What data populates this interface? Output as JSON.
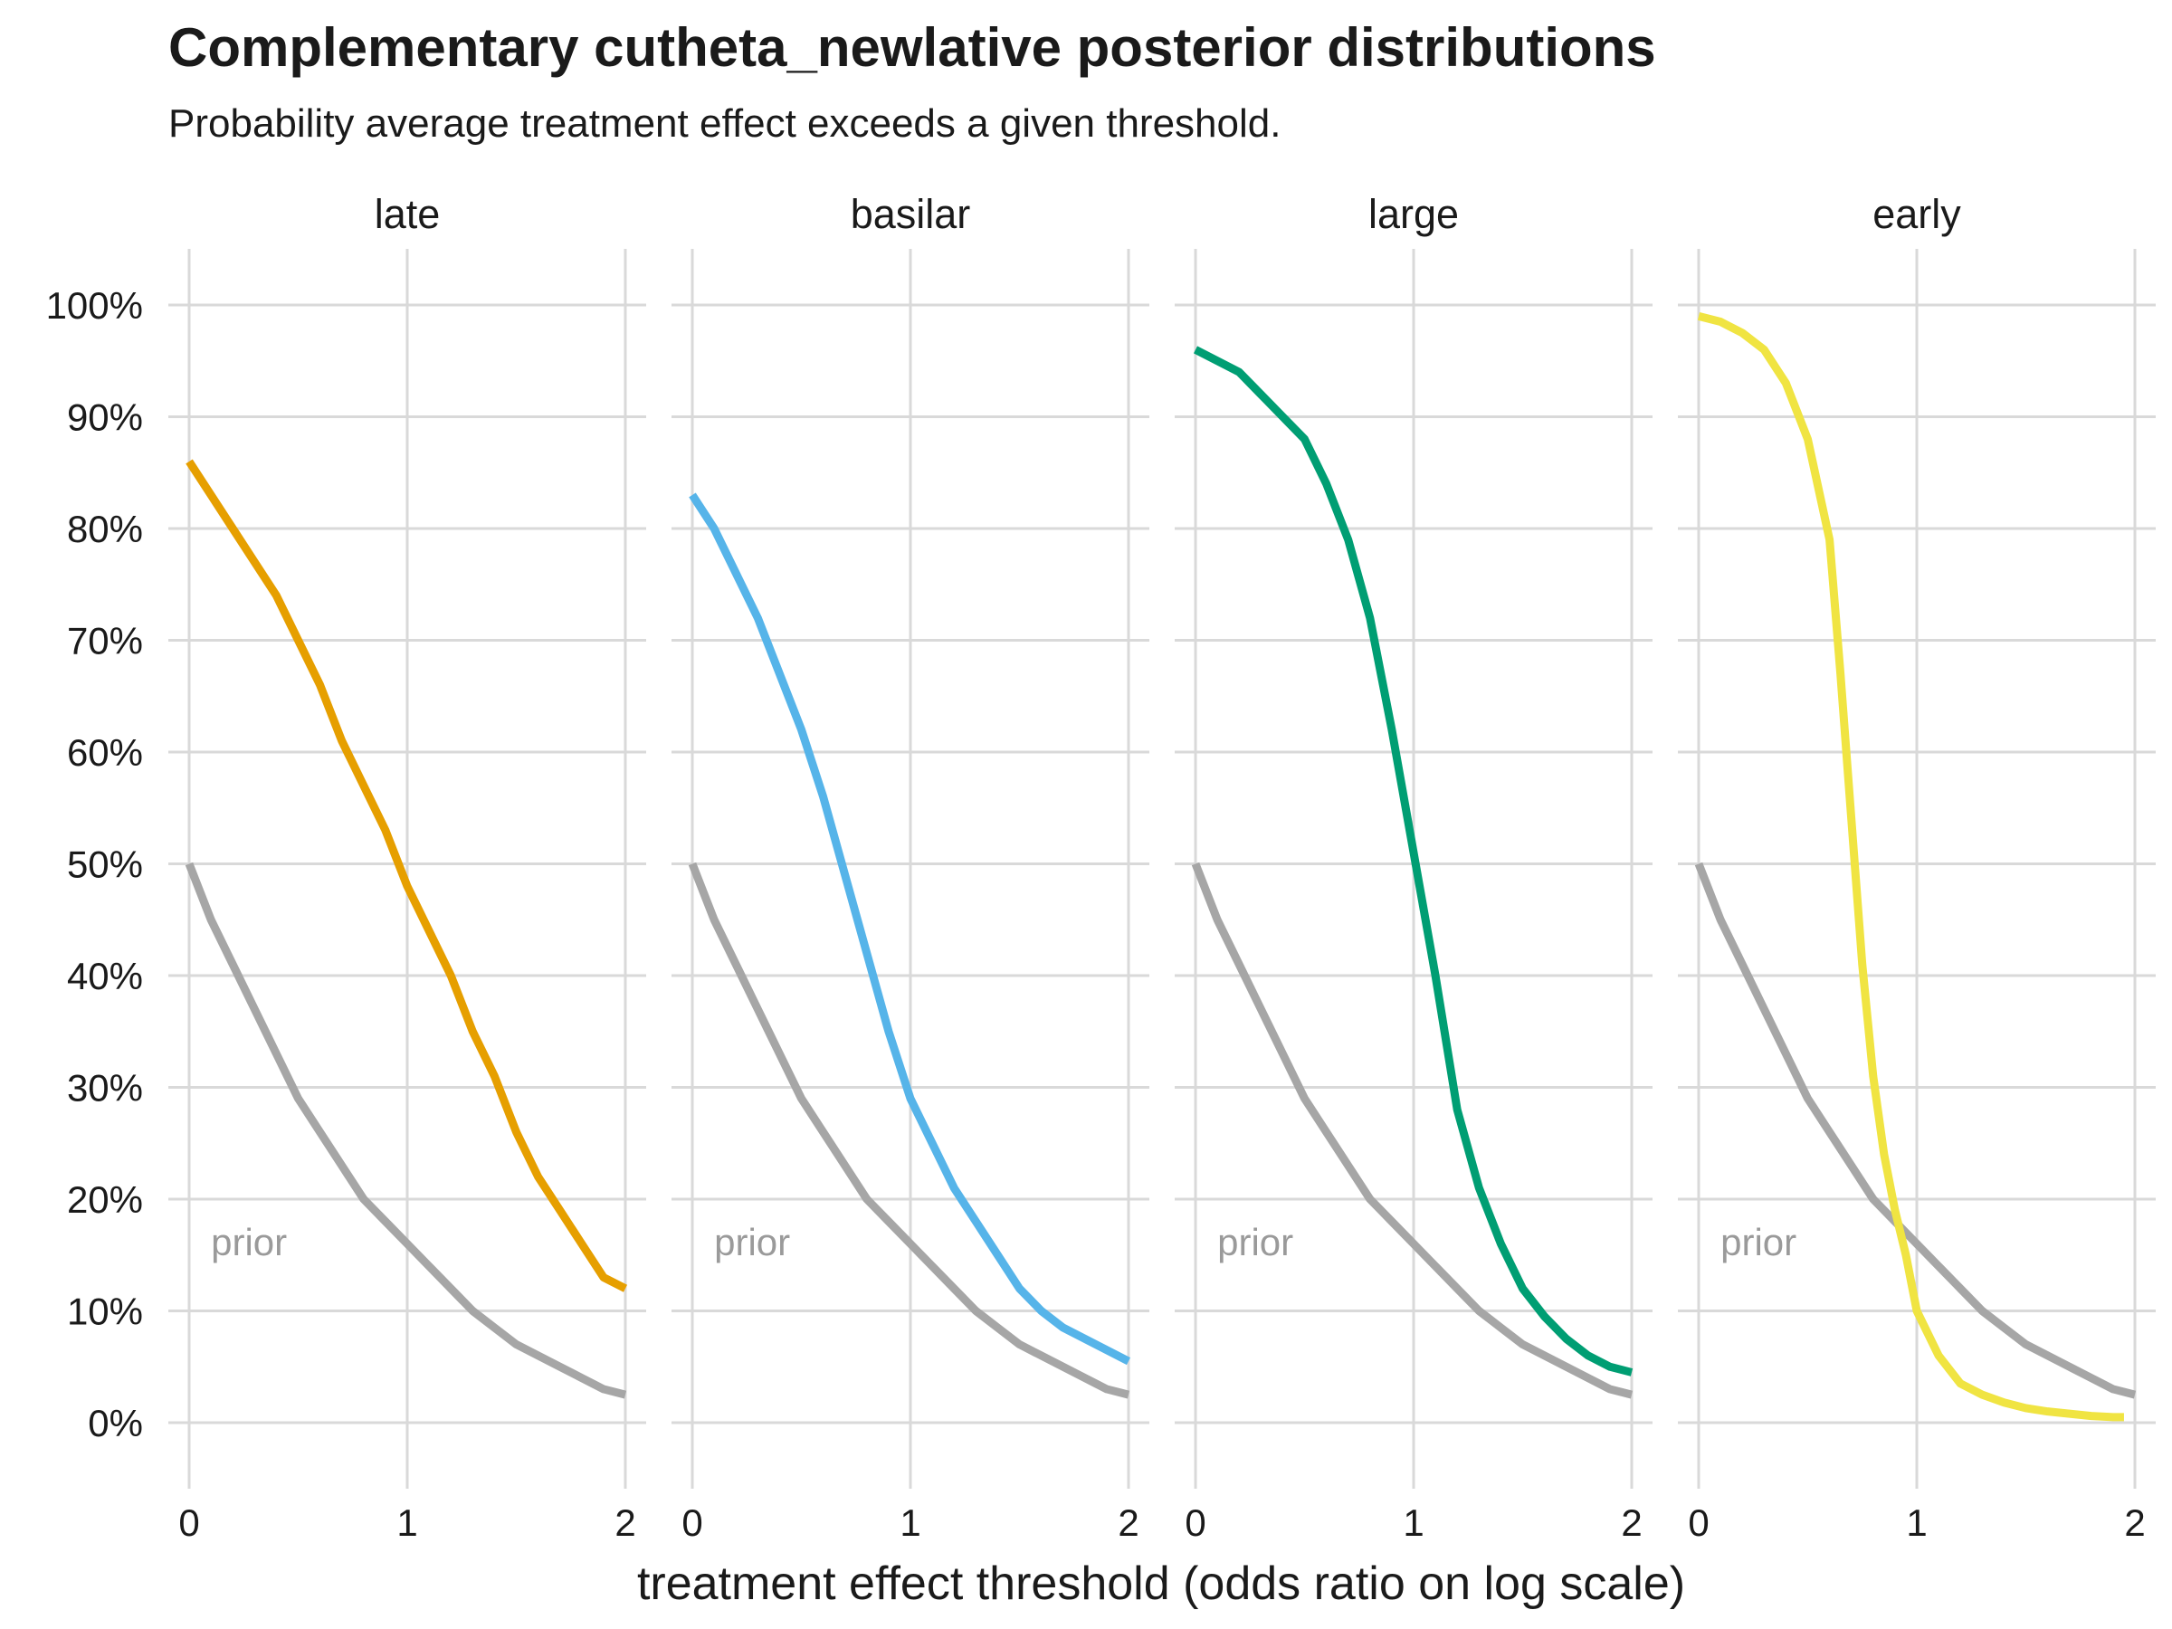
{
  "chart_data": {
    "type": "line",
    "title": "Complementary cutheta_newlative posterior distributions",
    "subtitle": "Probability average treatment effect exceeds a given threshold.",
    "xlabel": "treatment effect threshold (odds ratio on log scale)",
    "ylabel": "",
    "xlim": [
      0,
      2
    ],
    "ylim": [
      0,
      1
    ],
    "x_ticks": [
      "0",
      "1",
      "2"
    ],
    "y_ticks": [
      "0%",
      "10%",
      "20%",
      "30%",
      "40%",
      "50%",
      "60%",
      "70%",
      "80%",
      "90%",
      "100%"
    ],
    "grid": true,
    "prior_label": "prior",
    "prior_color": "#a6a6a6",
    "prior": {
      "x": [
        0,
        0.1,
        0.2,
        0.3,
        0.4,
        0.5,
        0.6,
        0.7,
        0.8,
        0.9,
        1.0,
        1.1,
        1.2,
        1.3,
        1.4,
        1.5,
        1.6,
        1.7,
        1.8,
        1.9,
        2.0
      ],
      "y": [
        0.5,
        0.45,
        0.41,
        0.37,
        0.33,
        0.29,
        0.26,
        0.23,
        0.2,
        0.18,
        0.16,
        0.14,
        0.12,
        0.1,
        0.085,
        0.07,
        0.06,
        0.05,
        0.04,
        0.03,
        0.025
      ]
    },
    "panels": [
      {
        "name": "late",
        "color": "#E69F00",
        "x": [
          0,
          0.1,
          0.2,
          0.3,
          0.4,
          0.5,
          0.6,
          0.7,
          0.8,
          0.9,
          1.0,
          1.1,
          1.2,
          1.3,
          1.4,
          1.5,
          1.6,
          1.7,
          1.8,
          1.9,
          2.0
        ],
        "y": [
          0.86,
          0.83,
          0.8,
          0.77,
          0.74,
          0.7,
          0.66,
          0.61,
          0.57,
          0.53,
          0.48,
          0.44,
          0.4,
          0.35,
          0.31,
          0.26,
          0.22,
          0.19,
          0.16,
          0.13,
          0.12
        ]
      },
      {
        "name": "basilar",
        "color": "#56B4E9",
        "x": [
          0,
          0.1,
          0.2,
          0.3,
          0.4,
          0.5,
          0.6,
          0.7,
          0.8,
          0.9,
          1.0,
          1.1,
          1.2,
          1.3,
          1.4,
          1.5,
          1.6,
          1.7,
          1.8,
          1.9,
          2.0
        ],
        "y": [
          0.83,
          0.8,
          0.76,
          0.72,
          0.67,
          0.62,
          0.56,
          0.49,
          0.42,
          0.35,
          0.29,
          0.25,
          0.21,
          0.18,
          0.15,
          0.12,
          0.1,
          0.085,
          0.075,
          0.065,
          0.055
        ]
      },
      {
        "name": "large",
        "color": "#009E73",
        "x": [
          0,
          0.1,
          0.2,
          0.3,
          0.4,
          0.5,
          0.6,
          0.7,
          0.8,
          0.9,
          1.0,
          1.1,
          1.2,
          1.3,
          1.4,
          1.5,
          1.6,
          1.7,
          1.8,
          1.9,
          2.0
        ],
        "y": [
          0.96,
          0.95,
          0.94,
          0.92,
          0.9,
          0.88,
          0.84,
          0.79,
          0.72,
          0.62,
          0.51,
          0.4,
          0.28,
          0.21,
          0.16,
          0.12,
          0.095,
          0.075,
          0.06,
          0.05,
          0.045
        ]
      },
      {
        "name": "early",
        "color": "#F0E442",
        "x": [
          0,
          0.1,
          0.2,
          0.3,
          0.4,
          0.5,
          0.6,
          0.65,
          0.7,
          0.75,
          0.8,
          0.85,
          0.9,
          0.95,
          1.0,
          1.1,
          1.2,
          1.3,
          1.4,
          1.5,
          1.6,
          1.7,
          1.8,
          1.9,
          1.95
        ],
        "y": [
          0.99,
          0.985,
          0.975,
          0.96,
          0.93,
          0.88,
          0.79,
          0.67,
          0.54,
          0.41,
          0.31,
          0.24,
          0.19,
          0.15,
          0.1,
          0.06,
          0.035,
          0.025,
          0.018,
          0.013,
          0.01,
          0.008,
          0.006,
          0.005,
          0.005
        ]
      }
    ]
  }
}
